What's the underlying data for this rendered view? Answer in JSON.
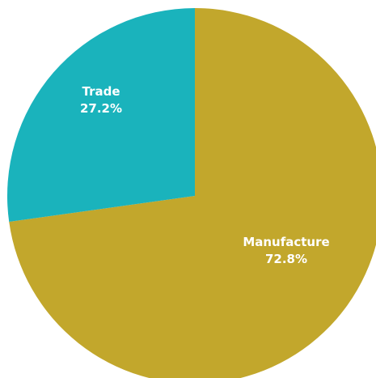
{
  "chart_data": {
    "type": "pie",
    "start": "12 o'clock",
    "direction": "clockwise",
    "slices": [
      {
        "label": "Manufacture",
        "value": 72.8,
        "value_label": "72.8%",
        "color": "#C2A72C"
      },
      {
        "label": "Trade",
        "value": 27.2,
        "value_label": "27.2%",
        "color": "#1AB3BC"
      }
    ]
  }
}
